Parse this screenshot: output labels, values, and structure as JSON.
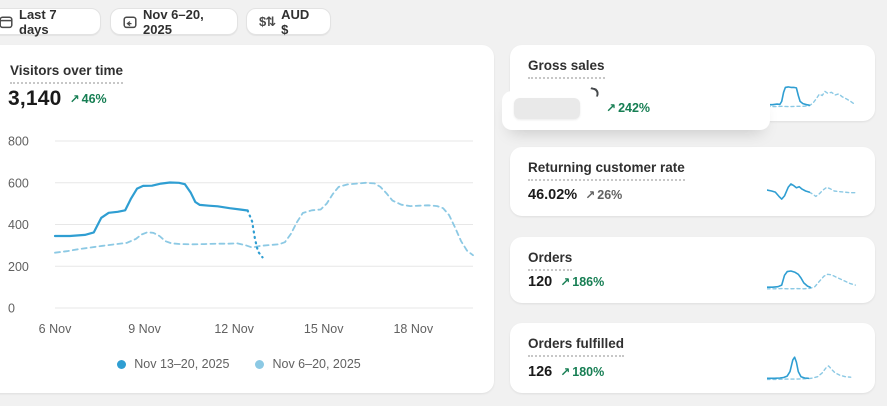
{
  "toolbar": {
    "date_preset": {
      "label": "Last 7 days",
      "icon": "calendar-icon"
    },
    "date_range": {
      "label": "Nov 6–20, 2025",
      "icon": "calendar-refresh-icon"
    },
    "currency": {
      "label": "AUD $",
      "icon": "currency-exchange-icon",
      "icon_glyph": "$⇅"
    }
  },
  "glyphs": {
    "up_arrow": "↗"
  },
  "colors": {
    "page_bg": "#f1f1f1",
    "card_bg": "#ffffff",
    "text_dark": "#303030",
    "text_grey": "#616161",
    "green": "#167e53",
    "line_current": "#2f9ed2",
    "line_comparison": "#8cc9e4",
    "gridline": "#e7e7e7"
  },
  "visitors_card": {
    "title": "Visitors over time",
    "value": "3,140",
    "change": "46%",
    "trend": "up"
  },
  "metric_cards": [
    {
      "id": "gross-sales",
      "title": "Gross sales",
      "value": "",
      "value_hidden_by_loading_overlay": true,
      "change": "242%",
      "trend": "up",
      "change_style": "positive"
    },
    {
      "id": "returning-customer-rate",
      "title": "Returning customer rate",
      "value": "46.02%",
      "change": "26%",
      "trend": "up",
      "change_style": "neutral"
    },
    {
      "id": "orders",
      "title": "Orders",
      "value": "120",
      "change": "186%",
      "trend": "up",
      "change_style": "positive"
    },
    {
      "id": "orders-fulfilled",
      "title": "Orders fulfilled",
      "value": "126",
      "change": "180%",
      "trend": "up",
      "change_style": "positive"
    }
  ],
  "chart_data": [
    {
      "type": "line",
      "title": "Visitors over time",
      "metric_value": "3,140",
      "change": "46%",
      "xlabel": "",
      "ylabel": "",
      "x_unit": "day offset from 6 Nov",
      "x_ticks": [
        {
          "day": 0,
          "label": "6 Nov"
        },
        {
          "day": 3,
          "label": "9 Nov"
        },
        {
          "day": 6,
          "label": "12 Nov"
        },
        {
          "day": 9,
          "label": "15 Nov"
        },
        {
          "day": 12,
          "label": "18 Nov"
        }
      ],
      "y_ticks": [
        0,
        200,
        400,
        600,
        800
      ],
      "ylim": [
        0,
        800
      ],
      "xlim_days": [
        0,
        14
      ],
      "grid": true,
      "legend_position": "bottom",
      "series": [
        {
          "name": "Nov 13–20, 2025",
          "color": "#2f9ed2",
          "style": "solid",
          "points": [
            [
              0,
              345
            ],
            [
              0.5,
              345
            ],
            [
              1,
              350
            ],
            [
              1.3,
              362
            ],
            [
              1.55,
              432
            ],
            [
              1.8,
              456
            ],
            [
              2.1,
              461
            ],
            [
              2.35,
              468
            ],
            [
              2.55,
              525
            ],
            [
              2.75,
              572
            ],
            [
              2.95,
              585
            ],
            [
              3.25,
              586
            ],
            [
              3.55,
              596
            ],
            [
              3.85,
              601
            ],
            [
              4.15,
              600
            ],
            [
              4.35,
              593
            ],
            [
              4.55,
              552
            ],
            [
              4.7,
              508
            ],
            [
              4.85,
              494
            ],
            [
              5.15,
              490
            ],
            [
              5.45,
              487
            ],
            [
              5.85,
              478
            ],
            [
              6.2,
              472
            ],
            [
              6.45,
              467
            ]
          ],
          "dotted_tail_points": [
            [
              6.45,
              467
            ],
            [
              6.6,
              415
            ],
            [
              6.7,
              330
            ],
            [
              6.8,
              270
            ],
            [
              6.95,
              243
            ]
          ]
        },
        {
          "name": "Nov 6–20, 2025",
          "color": "#8cc9e4",
          "style": "dashed",
          "points": [
            [
              0,
              265
            ],
            [
              0.4,
              272
            ],
            [
              0.8,
              282
            ],
            [
              1.2,
              290
            ],
            [
              1.6,
              298
            ],
            [
              2,
              305
            ],
            [
              2.4,
              312
            ],
            [
              2.7,
              330
            ],
            [
              2.9,
              352
            ],
            [
              3.1,
              363
            ],
            [
              3.3,
              360
            ],
            [
              3.5,
              345
            ],
            [
              3.7,
              320
            ],
            [
              3.9,
              310
            ],
            [
              4.2,
              306
            ],
            [
              4.6,
              305
            ],
            [
              5,
              306
            ],
            [
              5.4,
              308
            ],
            [
              5.8,
              308
            ],
            [
              6.1,
              310
            ],
            [
              6.4,
              300
            ],
            [
              6.6,
              290
            ],
            [
              6.9,
              298
            ],
            [
              7.2,
              302
            ],
            [
              7.5,
              305
            ],
            [
              7.7,
              315
            ],
            [
              7.9,
              355
            ],
            [
              8.1,
              410
            ],
            [
              8.3,
              455
            ],
            [
              8.6,
              468
            ],
            [
              8.9,
              472
            ],
            [
              9.1,
              500
            ],
            [
              9.3,
              545
            ],
            [
              9.5,
              580
            ],
            [
              9.8,
              592
            ],
            [
              10.1,
              596
            ],
            [
              10.4,
              600
            ],
            [
              10.7,
              597
            ],
            [
              10.9,
              580
            ],
            [
              11.1,
              550
            ],
            [
              11.3,
              515
            ],
            [
              11.6,
              495
            ],
            [
              11.9,
              488
            ],
            [
              12.2,
              490
            ],
            [
              12.5,
              492
            ],
            [
              12.8,
              488
            ],
            [
              13,
              478
            ],
            [
              13.2,
              445
            ],
            [
              13.4,
              385
            ],
            [
              13.6,
              320
            ],
            [
              13.8,
              275
            ],
            [
              14,
              253
            ]
          ]
        }
      ]
    },
    {
      "type": "line",
      "card_id": "gross-sales",
      "title": "Gross sales sparkline",
      "solid": [
        [
          0,
          0.16
        ],
        [
          6,
          0.16
        ],
        [
          11,
          0.18
        ],
        [
          14,
          0.17
        ],
        [
          16,
          0.28
        ],
        [
          18,
          0.62
        ],
        [
          20,
          0.8
        ],
        [
          23,
          0.82
        ],
        [
          26,
          0.8
        ],
        [
          29,
          0.8
        ],
        [
          32,
          0.78
        ],
        [
          34,
          0.5
        ],
        [
          36,
          0.28
        ],
        [
          39,
          0.2
        ],
        [
          43,
          0.16
        ],
        [
          46,
          0.14
        ]
      ],
      "dashed": [
        [
          0,
          0.1
        ],
        [
          8,
          0.09
        ],
        [
          16,
          0.1
        ],
        [
          24,
          0.09
        ],
        [
          32,
          0.1
        ],
        [
          40,
          0.1
        ],
        [
          46,
          0.12
        ],
        [
          50,
          0.22
        ],
        [
          54,
          0.4
        ],
        [
          57,
          0.55
        ],
        [
          60,
          0.5
        ],
        [
          63,
          0.65
        ],
        [
          66,
          0.58
        ],
        [
          70,
          0.62
        ],
        [
          74,
          0.52
        ],
        [
          78,
          0.56
        ],
        [
          82,
          0.45
        ],
        [
          86,
          0.38
        ],
        [
          91,
          0.28
        ],
        [
          96,
          0.16
        ]
      ]
    },
    {
      "type": "line",
      "card_id": "returning-customer-rate",
      "title": "Returning customer rate sparkline",
      "solid": [
        [
          0,
          0.52
        ],
        [
          5,
          0.48
        ],
        [
          9,
          0.44
        ],
        [
          13,
          0.28
        ],
        [
          16,
          0.18
        ],
        [
          19,
          0.3
        ],
        [
          23,
          0.62
        ],
        [
          26,
          0.74
        ],
        [
          29,
          0.68
        ],
        [
          32,
          0.6
        ],
        [
          35,
          0.64
        ],
        [
          38,
          0.55
        ],
        [
          42,
          0.48
        ],
        [
          46,
          0.44
        ]
      ],
      "dashed": [
        [
          46,
          0.44
        ],
        [
          50,
          0.36
        ],
        [
          53,
          0.28
        ],
        [
          57,
          0.38
        ],
        [
          61,
          0.52
        ],
        [
          65,
          0.62
        ],
        [
          69,
          0.56
        ],
        [
          73,
          0.48
        ],
        [
          78,
          0.46
        ],
        [
          84,
          0.44
        ],
        [
          90,
          0.42
        ],
        [
          96,
          0.42
        ]
      ]
    },
    {
      "type": "line",
      "card_id": "orders",
      "title": "Orders sparkline",
      "solid": [
        [
          0,
          0.14
        ],
        [
          6,
          0.14
        ],
        [
          12,
          0.16
        ],
        [
          16,
          0.22
        ],
        [
          19,
          0.58
        ],
        [
          22,
          0.72
        ],
        [
          26,
          0.74
        ],
        [
          30,
          0.7
        ],
        [
          34,
          0.62
        ],
        [
          37,
          0.48
        ],
        [
          40,
          0.3
        ],
        [
          44,
          0.18
        ],
        [
          47,
          0.14
        ]
      ],
      "dashed": [
        [
          0,
          0.08
        ],
        [
          8,
          0.08
        ],
        [
          16,
          0.09
        ],
        [
          24,
          0.08
        ],
        [
          32,
          0.09
        ],
        [
          40,
          0.08
        ],
        [
          47,
          0.1
        ],
        [
          52,
          0.16
        ],
        [
          57,
          0.36
        ],
        [
          62,
          0.55
        ],
        [
          66,
          0.62
        ],
        [
          70,
          0.6
        ],
        [
          75,
          0.52
        ],
        [
          80,
          0.44
        ],
        [
          85,
          0.36
        ],
        [
          90,
          0.28
        ],
        [
          96,
          0.22
        ]
      ]
    },
    {
      "type": "line",
      "card_id": "orders-fulfilled",
      "title": "Orders fulfilled sparkline",
      "solid": [
        [
          0,
          0.1
        ],
        [
          8,
          0.1
        ],
        [
          14,
          0.11
        ],
        [
          18,
          0.13
        ],
        [
          22,
          0.18
        ],
        [
          25,
          0.35
        ],
        [
          28,
          0.78
        ],
        [
          30,
          0.88
        ],
        [
          32,
          0.7
        ],
        [
          34,
          0.35
        ],
        [
          37,
          0.16
        ],
        [
          41,
          0.11
        ],
        [
          45,
          0.1
        ]
      ],
      "dashed": [
        [
          0,
          0.06
        ],
        [
          10,
          0.06
        ],
        [
          20,
          0.07
        ],
        [
          30,
          0.07
        ],
        [
          40,
          0.08
        ],
        [
          45,
          0.09
        ],
        [
          50,
          0.11
        ],
        [
          55,
          0.16
        ],
        [
          60,
          0.3
        ],
        [
          64,
          0.48
        ],
        [
          67,
          0.56
        ],
        [
          70,
          0.44
        ],
        [
          74,
          0.3
        ],
        [
          79,
          0.22
        ],
        [
          85,
          0.16
        ],
        [
          91,
          0.14
        ]
      ]
    }
  ]
}
